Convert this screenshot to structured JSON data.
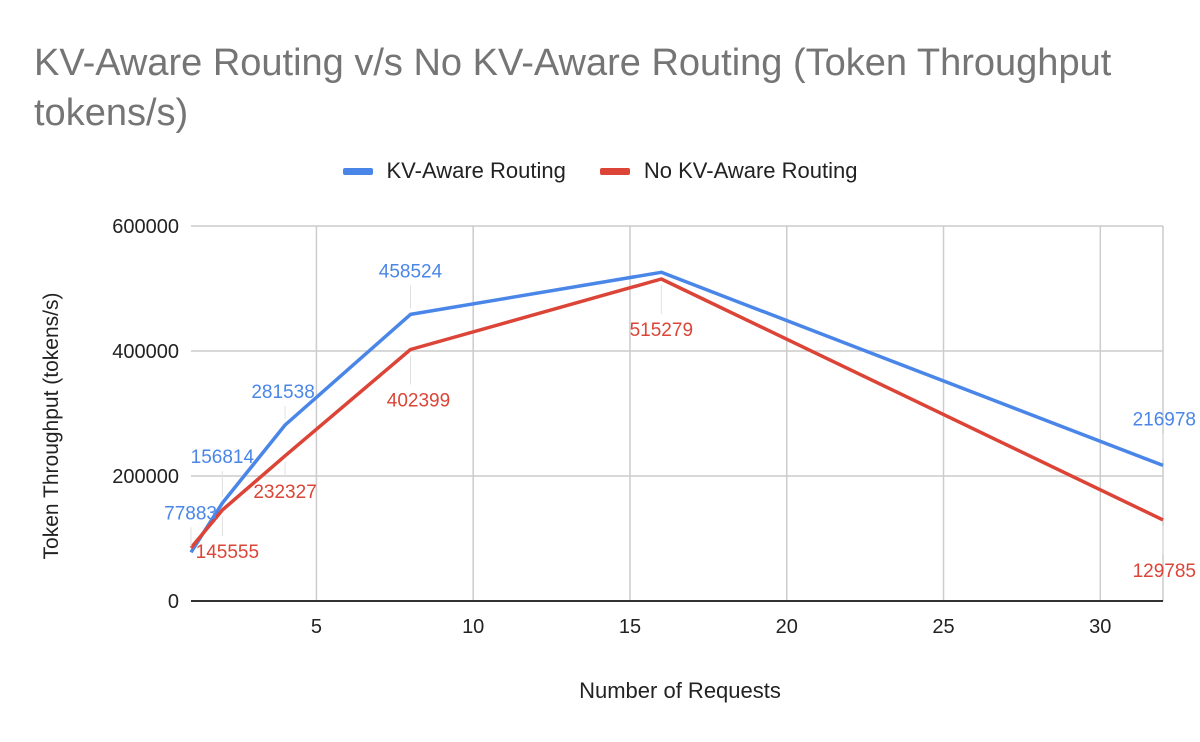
{
  "chart_data": {
    "type": "line",
    "title": "KV-Aware Routing v/s No KV-Aware Routing (Token Throughput tokens/s)",
    "xlabel": "Number of Requests",
    "ylabel": "Token Throughput (tokens/s)",
    "xlim": [
      1,
      32
    ],
    "ylim": [
      0,
      600000
    ],
    "x_ticks": [
      5,
      10,
      15,
      20,
      25,
      30
    ],
    "y_ticks": [
      0,
      200000,
      400000,
      600000
    ],
    "grid": true,
    "legend_position": "top",
    "x": [
      1,
      2,
      4,
      8,
      16,
      32
    ],
    "series": [
      {
        "name": "KV-Aware Routing",
        "color": "#4a86e8",
        "values": [
          77883,
          156814,
          281538,
          458524,
          526000,
          216978
        ],
        "labels": [
          "77883",
          "156814",
          "281538",
          "458524",
          "",
          "216978"
        ]
      },
      {
        "name": "No KV-Aware Routing",
        "color": "#db4437",
        "values": [
          85000,
          145555,
          232327,
          402399,
          515279,
          129785
        ],
        "labels": [
          "",
          "145555",
          "232327",
          "402399",
          "515279",
          "129785"
        ]
      }
    ]
  }
}
